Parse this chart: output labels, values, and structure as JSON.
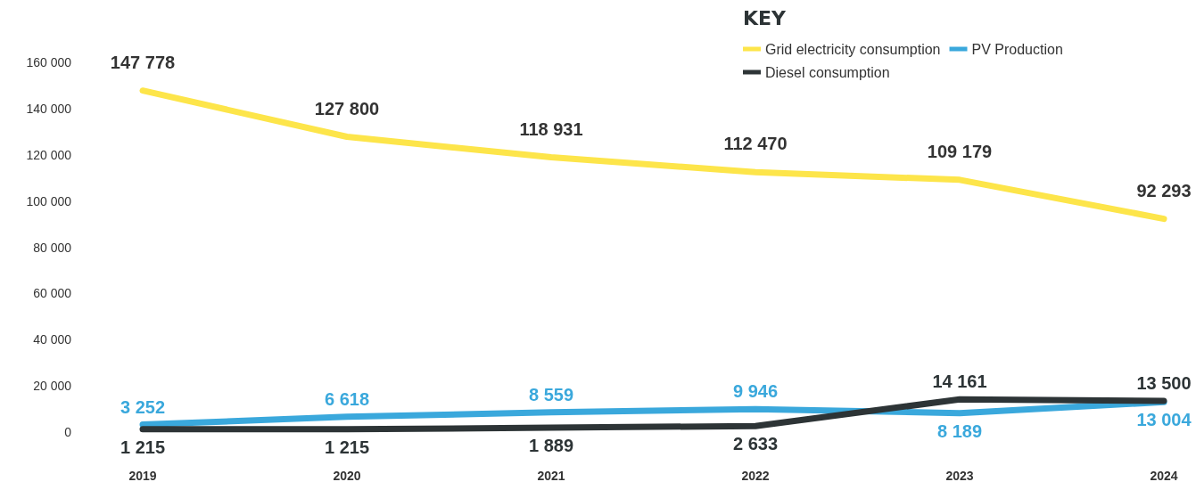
{
  "chart_data": {
    "type": "line",
    "categories": [
      "2019",
      "2020",
      "2021",
      "2022",
      "2023",
      "2024"
    ],
    "series": [
      {
        "name": "Grid electricity consumption",
        "color": "#fde54a",
        "values": [
          147778,
          127800,
          118931,
          112470,
          109179,
          92293
        ],
        "value_labels": [
          "147 778",
          "127 800",
          "118 931",
          "112 470",
          "109 179",
          "92 293"
        ]
      },
      {
        "name": "PV Production",
        "color": "#3aa8dc",
        "values": [
          3252,
          6618,
          8559,
          9946,
          8189,
          13004
        ],
        "value_labels": [
          "3 252",
          "6 618",
          "8 559",
          "9 946",
          "8 189",
          "13 004"
        ]
      },
      {
        "name": "Diesel consumption",
        "color": "#2d3436",
        "values": [
          1215,
          1215,
          1889,
          2633,
          14161,
          13500
        ],
        "value_labels": [
          "1 215",
          "1 215",
          "1 889",
          "2 633",
          "14 161",
          "13 500"
        ]
      }
    ],
    "ylim": [
      0,
      160000
    ],
    "yticks": [
      {
        "value": 0,
        "label": "0"
      },
      {
        "value": 20000,
        "label": "20 000"
      },
      {
        "value": 40000,
        "label": "40 000"
      },
      {
        "value": 60000,
        "label": "60 000"
      },
      {
        "value": 80000,
        "label": "80 000"
      },
      {
        "value": 100000,
        "label": "100 000"
      },
      {
        "value": 120000,
        "label": "120 000"
      },
      {
        "value": 140000,
        "label": "140 000"
      },
      {
        "value": 160000,
        "label": "160 000"
      }
    ],
    "legend_title": "KEY",
    "legend": "top right",
    "grid": false,
    "line_style": "solid"
  }
}
